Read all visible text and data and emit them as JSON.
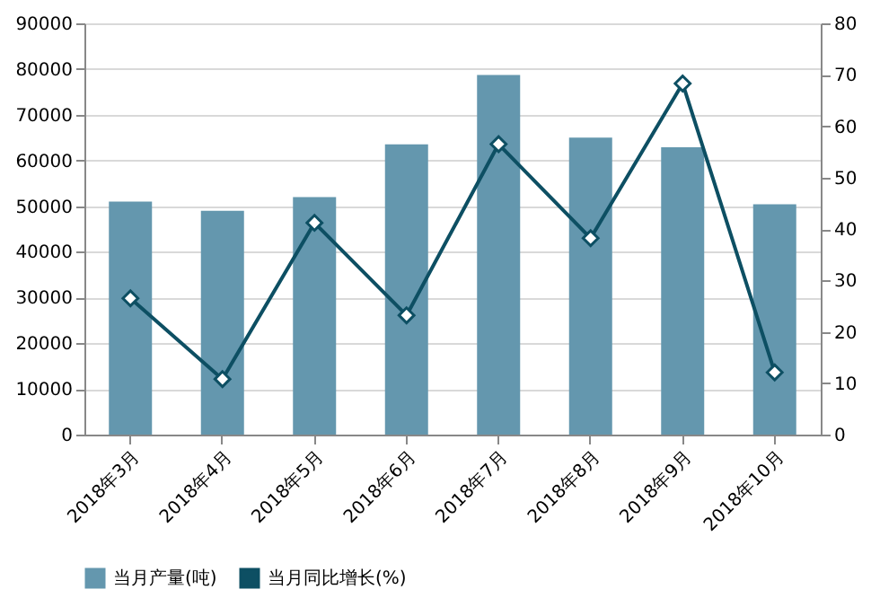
{
  "chart_data": {
    "type": "bar",
    "categories": [
      "2018年3月",
      "2018年4月",
      "2018年5月",
      "2018年6月",
      "2018年7月",
      "2018年8月",
      "2018年9月",
      "2018年10月"
    ],
    "series": [
      {
        "name": "当月产量(吨)",
        "color": "#6497ae",
        "values": [
          51000,
          49000,
          52000,
          63500,
          78700,
          65000,
          62900,
          50400
        ]
      },
      {
        "name": "当月同比增长(%)",
        "type": "line",
        "axis": "y2",
        "color": "#0d4f63",
        "marker": "diamond",
        "values": [
          26.5,
          10.8,
          41.2,
          23.2,
          56.5,
          38.2,
          68.3,
          12.1
        ]
      }
    ],
    "ylim": [
      0,
      90000
    ],
    "yticks": [
      0,
      10000,
      20000,
      30000,
      40000,
      50000,
      60000,
      70000,
      80000,
      90000
    ],
    "y2lim": [
      0,
      80
    ],
    "y2ticks": [
      0,
      10,
      20,
      30,
      40,
      50,
      60,
      70,
      80
    ],
    "grid": "y",
    "legend": "bottom"
  }
}
